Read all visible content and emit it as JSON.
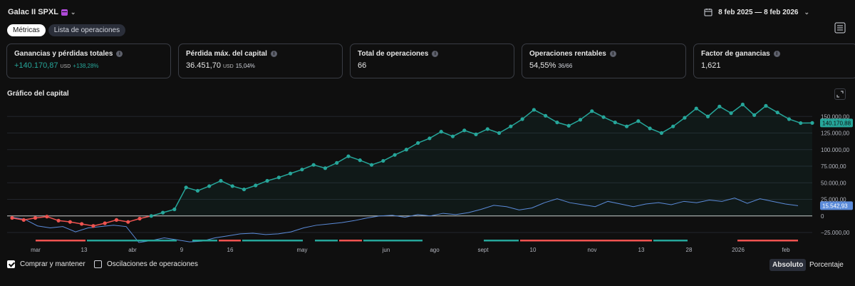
{
  "header": {
    "strategy_name": "Galac II SPXL",
    "date_range": "8 feb 2025 — 8 feb 2026"
  },
  "tabs": [
    {
      "label": "Métricas",
      "active": true
    },
    {
      "label": "Lista de operaciones",
      "active": false
    }
  ],
  "metrics": [
    {
      "title": "Ganancias y pérdidas totales",
      "value": "+140.170,87",
      "unit": "USD",
      "sub": "+138,28%",
      "positive": true
    },
    {
      "title": "Pérdida máx. del capital",
      "value": "36.451,70",
      "unit": "USD",
      "sub": "15,04%",
      "positive": false
    },
    {
      "title": "Total de operaciones",
      "value": "66",
      "unit": "",
      "sub": "",
      "positive": false
    },
    {
      "title": "Operaciones rentables",
      "value": "54,55%",
      "unit": "",
      "sub": "36/66",
      "positive": false
    },
    {
      "title": "Factor de ganancias",
      "value": "1,621",
      "unit": "",
      "sub": "",
      "positive": false
    }
  ],
  "chart_section": {
    "title": "Gráfico del capital"
  },
  "chart_data": {
    "type": "line",
    "ylim": [
      -40000,
      175000
    ],
    "y_ticks": [
      150000,
      125000,
      100000,
      75000,
      50000,
      25000,
      0,
      -25000
    ],
    "y_tick_labels": [
      "150.000,00",
      "125.000,00",
      "100.000,00",
      "75.000,00",
      "50.000,00",
      "25.000,00",
      "0",
      "−25.000,00"
    ],
    "x_tick_labels": [
      "mar",
      "13",
      "abr",
      "9",
      "16",
      "may",
      "jun",
      "ago",
      "sept",
      "10",
      "nov",
      "13",
      "28",
      "2026",
      "feb"
    ],
    "series": [
      {
        "role": "equity",
        "last_label": "140.170,88",
        "color_up": "#26a69a",
        "color_down": "#ef5350",
        "values": [
          -3000,
          -6000,
          -3000,
          -1000,
          -7000,
          -9000,
          -12000,
          -15000,
          -11000,
          -6000,
          -9000,
          -4000,
          0,
          5000,
          10000,
          43000,
          38000,
          45000,
          53000,
          45000,
          40000,
          46000,
          53000,
          58000,
          64000,
          70000,
          77000,
          72000,
          80000,
          90000,
          84000,
          77000,
          83000,
          92000,
          100000,
          110000,
          117000,
          127000,
          120000,
          129000,
          123000,
          131000,
          125000,
          135000,
          146000,
          160000,
          151000,
          141000,
          136000,
          145000,
          158000,
          149000,
          141000,
          135000,
          143000,
          132000,
          125000,
          135000,
          148000,
          162000,
          150000,
          165000,
          155000,
          168000,
          152000,
          166000,
          156000,
          146000,
          140000,
          140171
        ]
      },
      {
        "role": "buy_hold",
        "last_label": "15.542,93",
        "color": "#5b8bd9",
        "values": [
          -2000,
          -5000,
          -15000,
          -18000,
          -16000,
          -24000,
          -18000,
          -16000,
          -14000,
          -16000,
          -40000,
          -37000,
          -33000,
          -36000,
          -39000,
          -38000,
          -33000,
          -30000,
          -27000,
          -26000,
          -28000,
          -27000,
          -24000,
          -18000,
          -14000,
          -12000,
          -10000,
          -7000,
          -3000,
          0,
          1000,
          -2000,
          2000,
          0,
          4000,
          2000,
          5000,
          10000,
          16000,
          14000,
          9000,
          12000,
          20000,
          26000,
          20000,
          17000,
          14000,
          22000,
          18000,
          14000,
          18000,
          20000,
          17000,
          22000,
          20000,
          24000,
          22000,
          27000,
          19000,
          26000,
          22000,
          18000,
          15543
        ]
      }
    ]
  },
  "footer": {
    "buy_hold_label": "Comprar y mantener",
    "buy_hold_checked": true,
    "excursions_label": "Oscilaciones de operaciones",
    "excursions_checked": false,
    "absolute_label": "Absoluto",
    "percentage_label": "Porcentaje"
  }
}
